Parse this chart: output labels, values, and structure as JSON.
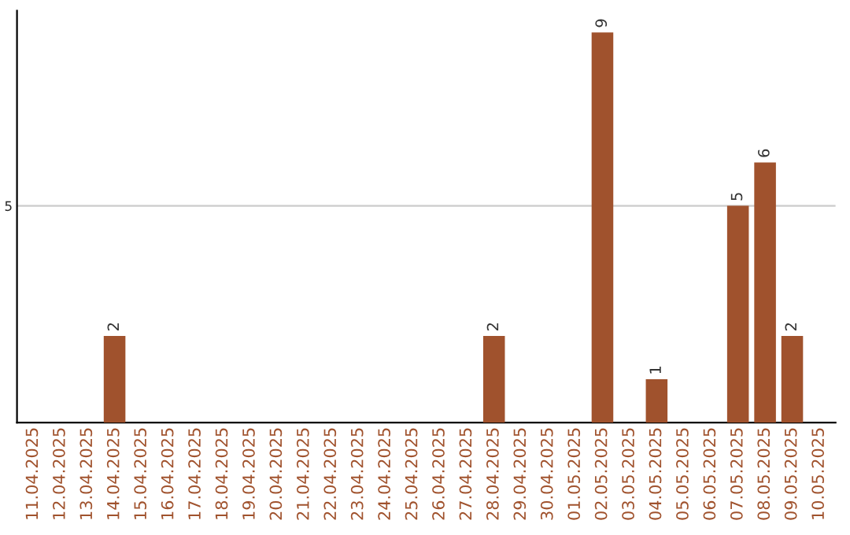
{
  "chart_data": {
    "type": "bar",
    "categories": [
      "11.04.2025",
      "12.04.2025",
      "13.04.2025",
      "14.04.2025",
      "15.04.2025",
      "16.04.2025",
      "17.04.2025",
      "18.04.2025",
      "19.04.2025",
      "20.04.2025",
      "21.04.2025",
      "22.04.2025",
      "23.04.2025",
      "24.04.2025",
      "25.04.2025",
      "26.04.2025",
      "27.04.2025",
      "28.04.2025",
      "29.04.2025",
      "30.04.2025",
      "01.05.2025",
      "02.05.2025",
      "03.05.2025",
      "04.05.2025",
      "05.05.2025",
      "06.05.2025",
      "07.05.2025",
      "08.05.2025",
      "09.05.2025",
      "10.05.2025"
    ],
    "values": [
      0,
      0,
      0,
      2,
      0,
      0,
      0,
      0,
      0,
      0,
      0,
      0,
      0,
      0,
      0,
      0,
      0,
      2,
      0,
      0,
      0,
      9,
      0,
      1,
      0,
      0,
      5,
      6,
      2,
      0
    ],
    "value_labels": [
      null,
      null,
      null,
      "2",
      null,
      null,
      null,
      null,
      null,
      null,
      null,
      null,
      null,
      null,
      null,
      null,
      null,
      "2",
      null,
      null,
      null,
      "9",
      null,
      "1",
      null,
      null,
      "5",
      "6",
      "2",
      null
    ],
    "color": "#a0522d",
    "ylim": [
      0,
      9.5
    ],
    "yticks": [
      5
    ],
    "grid": "y",
    "legend": false
  }
}
